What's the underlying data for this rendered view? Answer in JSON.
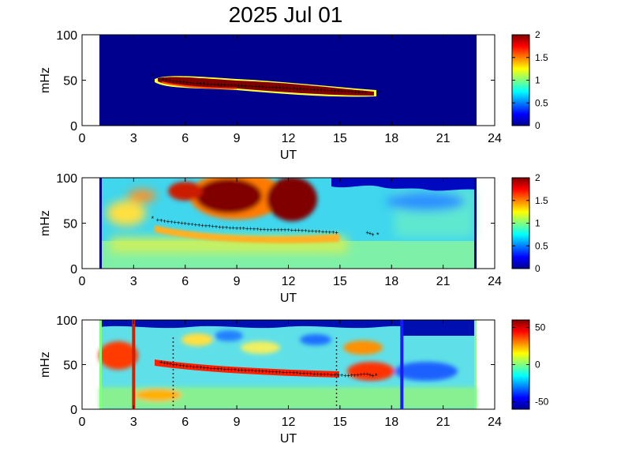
{
  "title": "2025 Jul 01",
  "chart_data": [
    {
      "type": "heatmap",
      "xlabel": "UT",
      "ylabel": "mHz",
      "xlim": [
        0,
        24
      ],
      "ylim": [
        0,
        100
      ],
      "xticks": [
        "0",
        "3",
        "6",
        "9",
        "12",
        "15",
        "18",
        "21",
        "24"
      ],
      "yticks": [
        "0",
        "50",
        "100"
      ],
      "data_range_ut": [
        1,
        23
      ],
      "colorbar": {
        "range": [
          0,
          2
        ],
        "ticks": [
          "0",
          "0.5",
          "1",
          "1.5",
          "2"
        ]
      },
      "band": {
        "description": "high power ridge",
        "points": [
          [
            4.2,
            55
          ],
          [
            5,
            50
          ],
          [
            6,
            48
          ],
          [
            9,
            45
          ],
          [
            12,
            42
          ],
          [
            15,
            39
          ],
          [
            17,
            36
          ]
        ]
      },
      "markers_black": [
        [
          4.5,
          52
        ],
        [
          5.5,
          49
        ],
        [
          6.5,
          47
        ],
        [
          7.5,
          46
        ],
        [
          8.5,
          45
        ],
        [
          9.5,
          44
        ],
        [
          10.5,
          43
        ],
        [
          11.5,
          42
        ],
        [
          12.5,
          41
        ],
        [
          13.5,
          40
        ],
        [
          14.5,
          39
        ],
        [
          15.5,
          38
        ],
        [
          16.5,
          37
        ]
      ],
      "markers_red": [
        [
          4.1,
          55
        ],
        [
          17.3,
          36
        ]
      ]
    },
    {
      "type": "heatmap",
      "xlabel": "UT",
      "ylabel": "mHz",
      "xlim": [
        0,
        24
      ],
      "ylim": [
        0,
        100
      ],
      "xticks": [
        "0",
        "3",
        "6",
        "9",
        "12",
        "15",
        "18",
        "21",
        "24"
      ],
      "yticks": [
        "0",
        "50",
        "100"
      ],
      "data_range_ut": [
        1,
        23
      ],
      "colorbar": {
        "range": [
          0,
          2
        ],
        "ticks": [
          "0",
          "0.5",
          "1",
          "1.5",
          "2"
        ]
      },
      "markers_black": [
        [
          4.4,
          54
        ],
        [
          5,
          52
        ],
        [
          6,
          50
        ],
        [
          7,
          48
        ],
        [
          8,
          46
        ],
        [
          9,
          45
        ],
        [
          10,
          44
        ],
        [
          11,
          43
        ],
        [
          12,
          43
        ],
        [
          13,
          42
        ],
        [
          14,
          41
        ],
        [
          15,
          40
        ],
        [
          16.6,
          40
        ],
        [
          16.9,
          38
        ]
      ],
      "markers_red": [
        [
          4.1,
          55
        ],
        [
          17.2,
          37
        ]
      ]
    },
    {
      "type": "heatmap",
      "xlabel": "UT",
      "ylabel": "mHz",
      "xlim": [
        0,
        24
      ],
      "ylim": [
        0,
        100
      ],
      "xticks": [
        "0",
        "3",
        "6",
        "9",
        "12",
        "15",
        "18",
        "21",
        "24"
      ],
      "yticks": [
        "0",
        "50",
        "100"
      ],
      "data_range_ut": [
        1,
        23
      ],
      "colorbar": {
        "range": [
          -60,
          60
        ],
        "ticks": [
          "50",
          "0",
          "-50"
        ]
      },
      "vertical_lines": [
        {
          "x": 3.0,
          "color": "#cc2200",
          "style": "solid"
        },
        {
          "x": 18.6,
          "color": "#1a1aff",
          "style": "solid"
        },
        {
          "x": 5.3,
          "color": "#661100",
          "style": "dotted"
        },
        {
          "x": 14.8,
          "color": "#333333",
          "style": "dotted"
        }
      ],
      "markers_black": [
        [
          4.6,
          53
        ],
        [
          5.5,
          50
        ],
        [
          6.5,
          48
        ],
        [
          7.5,
          46
        ],
        [
          8.5,
          45
        ],
        [
          9.5,
          44
        ],
        [
          10.5,
          43
        ],
        [
          11.5,
          42
        ],
        [
          12.5,
          41
        ],
        [
          13.5,
          40
        ],
        [
          14.5,
          39
        ],
        [
          15.5,
          38
        ],
        [
          16.6,
          40
        ],
        [
          16.9,
          38
        ]
      ],
      "markers_red": [
        [
          17.1,
          37
        ]
      ]
    }
  ]
}
